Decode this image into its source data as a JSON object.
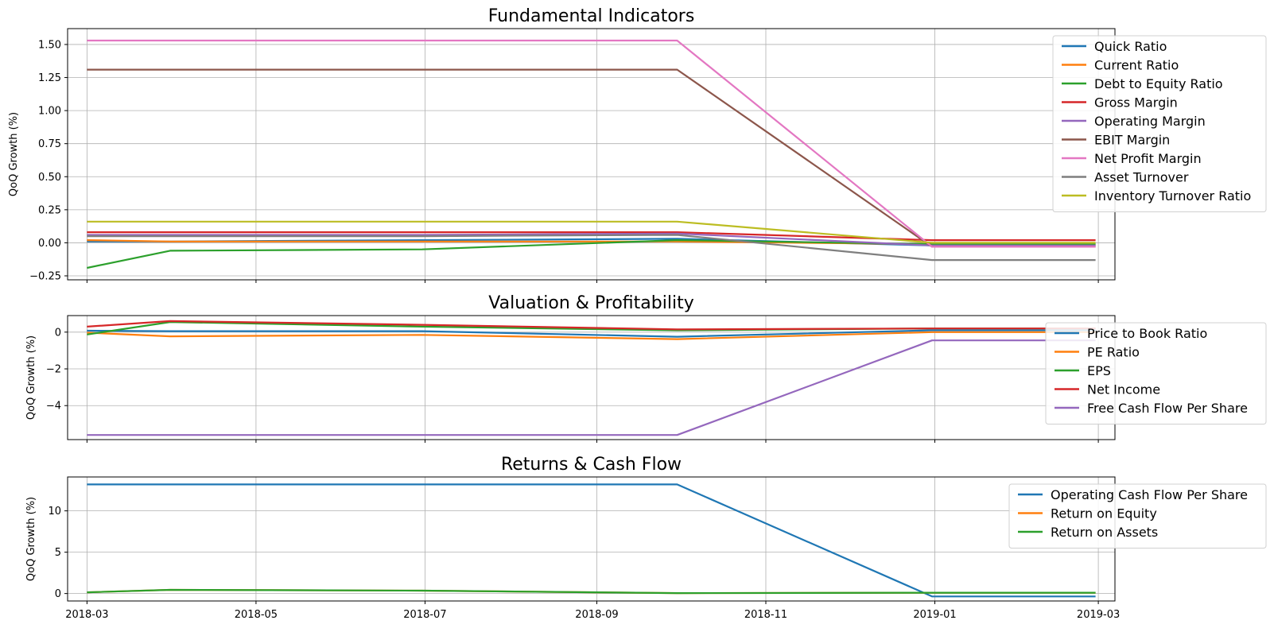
{
  "chart_data": [
    {
      "type": "line",
      "title": "Fundamental Indicators",
      "ylabel": "QoQ Growth (%)",
      "xlabel": "",
      "ylim": [
        -0.28,
        1.62
      ],
      "yticks": [
        -0.25,
        0.0,
        0.25,
        0.5,
        0.75,
        1.0,
        1.25,
        1.5
      ],
      "ytick_labels": [
        "−0.25",
        "0.00",
        "0.25",
        "0.50",
        "0.75",
        "1.00",
        "1.25",
        "1.50"
      ],
      "grid": true,
      "legend_position": "upper-right",
      "x": [
        "2018-03-01",
        "2018-03-31",
        "2018-06-30",
        "2018-09-30",
        "2018-12-31",
        "2019-02-28"
      ],
      "series": [
        {
          "name": "Quick Ratio",
          "color": "#1f77b4",
          "values": [
            0.01,
            0.01,
            0.02,
            0.03,
            -0.02,
            -0.02
          ]
        },
        {
          "name": "Current Ratio",
          "color": "#ff7f0e",
          "values": [
            0.02,
            0.01,
            0.01,
            0.01,
            -0.01,
            -0.01
          ]
        },
        {
          "name": "Debt to Equity Ratio",
          "color": "#2ca02c",
          "values": [
            -0.19,
            -0.06,
            -0.05,
            0.02,
            -0.01,
            -0.01
          ]
        },
        {
          "name": "Gross Margin",
          "color": "#d62728",
          "values": [
            0.08,
            0.08,
            0.08,
            0.08,
            0.02,
            0.02
          ]
        },
        {
          "name": "Operating Margin",
          "color": "#9467bd",
          "values": [
            0.06,
            0.06,
            0.06,
            0.07,
            -0.02,
            -0.02
          ]
        },
        {
          "name": "EBIT Margin",
          "color": "#8c564b",
          "values": [
            1.31,
            1.31,
            1.31,
            1.31,
            -0.03,
            -0.03
          ]
        },
        {
          "name": "Net Profit Margin",
          "color": "#e377c2",
          "values": [
            1.53,
            1.53,
            1.53,
            1.53,
            -0.03,
            -0.03
          ]
        },
        {
          "name": "Asset Turnover",
          "color": "#7f7f7f",
          "values": [
            0.05,
            0.05,
            0.05,
            0.06,
            -0.13,
            -0.13
          ]
        },
        {
          "name": "Inventory Turnover Ratio",
          "color": "#bcbd22",
          "values": [
            0.16,
            0.16,
            0.16,
            0.16,
            0.0,
            0.0
          ]
        }
      ]
    },
    {
      "type": "line",
      "title": "Valuation & Profitability",
      "ylabel": "QoQ Growth (%)",
      "xlabel": "",
      "ylim": [
        -5.85,
        0.9
      ],
      "yticks": [
        -4,
        -2,
        0
      ],
      "ytick_labels": [
        "−4",
        "−2",
        "0"
      ],
      "grid": true,
      "legend_position": "upper-right",
      "x": [
        "2018-03-01",
        "2018-03-31",
        "2018-06-30",
        "2018-09-30",
        "2018-12-31",
        "2019-02-28"
      ],
      "series": [
        {
          "name": "Price to Book Ratio",
          "color": "#1f77b4",
          "values": [
            0.08,
            0.05,
            0.05,
            -0.25,
            0.1,
            0.1
          ]
        },
        {
          "name": "PE Ratio",
          "color": "#ff7f0e",
          "values": [
            -0.03,
            -0.23,
            -0.15,
            -0.38,
            0.0,
            0.0
          ]
        },
        {
          "name": "EPS",
          "color": "#2ca02c",
          "values": [
            -0.13,
            0.55,
            0.3,
            0.1,
            0.2,
            0.2
          ]
        },
        {
          "name": "Net Income",
          "color": "#d62728",
          "values": [
            0.3,
            0.6,
            0.4,
            0.15,
            0.2,
            0.2
          ]
        },
        {
          "name": "Free Cash Flow Per Share",
          "color": "#9467bd",
          "values": [
            -5.6,
            -5.6,
            -5.6,
            -5.6,
            -0.45,
            -0.45
          ]
        }
      ]
    },
    {
      "type": "line",
      "title": "Returns & Cash Flow",
      "ylabel": "QoQ Growth (%)",
      "xlabel": "",
      "ylim": [
        -0.9,
        14.1
      ],
      "yticks": [
        0,
        5,
        10
      ],
      "ytick_labels": [
        "0",
        "5",
        "10"
      ],
      "grid": true,
      "legend_position": "upper-right",
      "xticks": [
        "2018-03-01",
        "2018-05-01",
        "2018-07-01",
        "2018-09-01",
        "2018-11-01",
        "2019-01-01",
        "2019-03-01"
      ],
      "xtick_labels": [
        "2018-03",
        "2018-05",
        "2018-07",
        "2018-09",
        "2018-11",
        "2019-01",
        "2019-03"
      ],
      "x": [
        "2018-03-01",
        "2018-03-31",
        "2018-06-30",
        "2018-09-30",
        "2018-12-31",
        "2019-02-28"
      ],
      "series": [
        {
          "name": "Operating Cash Flow Per Share",
          "color": "#1f77b4",
          "values": [
            13.2,
            13.2,
            13.2,
            13.2,
            -0.35,
            -0.35
          ]
        },
        {
          "name": "Return on Equity",
          "color": "#ff7f0e",
          "values": [
            0.15,
            0.45,
            0.35,
            0.05,
            0.1,
            0.1
          ]
        },
        {
          "name": "Return on Assets",
          "color": "#2ca02c",
          "values": [
            0.15,
            0.45,
            0.35,
            0.05,
            0.1,
            0.1
          ]
        }
      ]
    }
  ]
}
